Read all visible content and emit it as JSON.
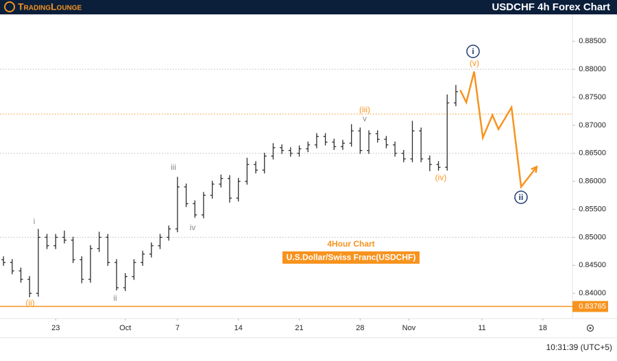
{
  "header": {
    "logo": "TradingLounge",
    "title": "USDCHF 4h Forex Chart"
  },
  "chart_data": {
    "type": "ohlc",
    "subtitle": "4Hour Chart",
    "title": "U.S.Dollar/Swiss Franc(USDCHF)",
    "bar_color": "#2b2b2b",
    "ylim": [
      0.8355,
      0.8898
    ],
    "yticks": [
      {
        "value": 0.885,
        "label": "0.88500"
      },
      {
        "value": 0.88,
        "label": "0.88000"
      },
      {
        "value": 0.875,
        "label": "0.87500"
      },
      {
        "value": 0.87,
        "label": "0.87000"
      },
      {
        "value": 0.865,
        "label": "0.86500"
      },
      {
        "value": 0.86,
        "label": "0.86000"
      },
      {
        "value": 0.855,
        "label": "0.85500"
      },
      {
        "value": 0.85,
        "label": "0.85000"
      },
      {
        "value": 0.845,
        "label": "0.84500"
      },
      {
        "value": 0.84,
        "label": "0.84000"
      }
    ],
    "xlim": [
      -6.4,
      59.4
    ],
    "xticks": [
      {
        "value": 0,
        "label": "23"
      },
      {
        "value": 8,
        "label": "Oct"
      },
      {
        "value": 14,
        "label": "7"
      },
      {
        "value": 21,
        "label": "14"
      },
      {
        "value": 28,
        "label": "21"
      },
      {
        "value": 35,
        "label": "28"
      },
      {
        "value": 40.6,
        "label": "Nov"
      },
      {
        "value": 49,
        "label": "11"
      },
      {
        "value": 56,
        "label": "18"
      }
    ],
    "x": [
      -6,
      -5,
      -4,
      -3,
      -2,
      -1,
      0,
      1,
      2,
      3,
      4,
      5,
      6,
      7,
      8,
      9,
      10,
      11,
      12,
      13,
      14,
      15,
      16,
      17,
      18,
      19,
      20,
      21,
      22,
      23,
      24,
      25,
      26,
      27,
      28,
      29,
      30,
      31,
      32,
      33,
      34,
      35,
      36,
      37,
      38,
      39,
      40,
      41,
      42,
      43,
      44,
      45,
      46
    ],
    "open": [
      0.846,
      0.8455,
      0.844,
      0.8425,
      0.84,
      0.85,
      0.8485,
      0.85,
      0.8495,
      0.846,
      0.8425,
      0.848,
      0.85,
      0.8455,
      0.841,
      0.843,
      0.8455,
      0.847,
      0.8485,
      0.85,
      0.8515,
      0.859,
      0.856,
      0.854,
      0.8575,
      0.8595,
      0.8605,
      0.857,
      0.86,
      0.863,
      0.862,
      0.8645,
      0.866,
      0.8655,
      0.865,
      0.8658,
      0.8665,
      0.868,
      0.867,
      0.8662,
      0.8668,
      0.869,
      0.8655,
      0.8685,
      0.8675,
      0.8665,
      0.865,
      0.864,
      0.869,
      0.864,
      0.863,
      0.8625,
      0.874
    ],
    "high": [
      0.8466,
      0.8461,
      0.8446,
      0.8431,
      0.8515,
      0.8506,
      0.8506,
      0.8512,
      0.8501,
      0.8466,
      0.8486,
      0.851,
      0.8506,
      0.8461,
      0.8436,
      0.8461,
      0.8476,
      0.8491,
      0.8506,
      0.8521,
      0.8608,
      0.8596,
      0.8566,
      0.8581,
      0.8601,
      0.8612,
      0.8611,
      0.8606,
      0.8642,
      0.8636,
      0.8651,
      0.8668,
      0.8666,
      0.8661,
      0.8664,
      0.8671,
      0.8686,
      0.8686,
      0.8676,
      0.8674,
      0.8702,
      0.8696,
      0.8691,
      0.8691,
      0.8681,
      0.8671,
      0.8656,
      0.8708,
      0.8696,
      0.8646,
      0.8636,
      0.8755,
      0.8772
    ],
    "low": [
      0.8449,
      0.8434,
      0.8419,
      0.8393,
      0.8394,
      0.8479,
      0.8479,
      0.8489,
      0.8454,
      0.8418,
      0.8419,
      0.8474,
      0.8449,
      0.8405,
      0.8404,
      0.8424,
      0.8449,
      0.8464,
      0.8479,
      0.8494,
      0.8509,
      0.8554,
      0.8535,
      0.8534,
      0.8569,
      0.8589,
      0.8562,
      0.8564,
      0.8594,
      0.8614,
      0.8614,
      0.8639,
      0.8649,
      0.8644,
      0.8644,
      0.8652,
      0.8659,
      0.8664,
      0.8656,
      0.8656,
      0.8662,
      0.8649,
      0.8649,
      0.8669,
      0.8659,
      0.8644,
      0.8634,
      0.8634,
      0.8634,
      0.8618,
      0.8619,
      0.8619,
      0.8734
    ],
    "close": [
      0.8455,
      0.844,
      0.8425,
      0.84,
      0.85,
      0.8485,
      0.85,
      0.8495,
      0.846,
      0.8425,
      0.848,
      0.85,
      0.8455,
      0.841,
      0.843,
      0.8455,
      0.847,
      0.8485,
      0.85,
      0.8515,
      0.859,
      0.856,
      0.854,
      0.8575,
      0.8595,
      0.8605,
      0.857,
      0.86,
      0.863,
      0.862,
      0.8645,
      0.866,
      0.8655,
      0.865,
      0.8658,
      0.8665,
      0.868,
      0.867,
      0.8662,
      0.8668,
      0.869,
      0.8655,
      0.8685,
      0.8675,
      0.8665,
      0.865,
      0.864,
      0.869,
      0.864,
      0.863,
      0.8625,
      0.874,
      0.876
    ],
    "projection": {
      "color": "#f7931e",
      "x": [
        46.5,
        47.2,
        48.1,
        49.1,
        50.2,
        50.9,
        52.4,
        53.5,
        55.3
      ],
      "y": [
        0.8763,
        0.8741,
        0.8796,
        0.8678,
        0.8718,
        0.8693,
        0.8732,
        0.859,
        0.8626
      ]
    },
    "levels": [
      {
        "value": 0.88,
        "color": "#b8b8b8",
        "dashed": true
      },
      {
        "value": 0.872,
        "color": "#f7931e",
        "dashed": true
      },
      {
        "value": 0.865,
        "color": "#b8b8b8",
        "dashed": true
      },
      {
        "value": 0.85,
        "color": "#b8b8b8",
        "dashed": true
      },
      {
        "value": 0.83765,
        "color": "#f7931e",
        "dashed": false
      }
    ],
    "price_tag": 0.83765,
    "annotations": [
      {
        "text": "i",
        "color": "#1f3a6e",
        "circled": true
      },
      {
        "text": "(v)",
        "color": "#f7931e",
        "circled": false
      },
      {
        "text": "(iii)",
        "color": "#f7931e",
        "circled": false
      },
      {
        "text": "v",
        "color": "#888888",
        "circled": false
      },
      {
        "text": "iii",
        "color": "#888888",
        "circled": false
      },
      {
        "text": "iv",
        "color": "#888888",
        "circled": false
      },
      {
        "text": "(iv)",
        "color": "#f7931e",
        "circled": false
      },
      {
        "text": "i",
        "color": "#888888",
        "circled": false
      },
      {
        "text": "(ii)",
        "color": "#f7931e",
        "circled": false
      },
      {
        "text": "ii",
        "color": "#888888",
        "circled": false
      },
      {
        "text": "ii",
        "color": "#1f3a6e",
        "circled": true
      }
    ]
  },
  "footer": {
    "time": "10:31:39 (UTC+5)"
  }
}
